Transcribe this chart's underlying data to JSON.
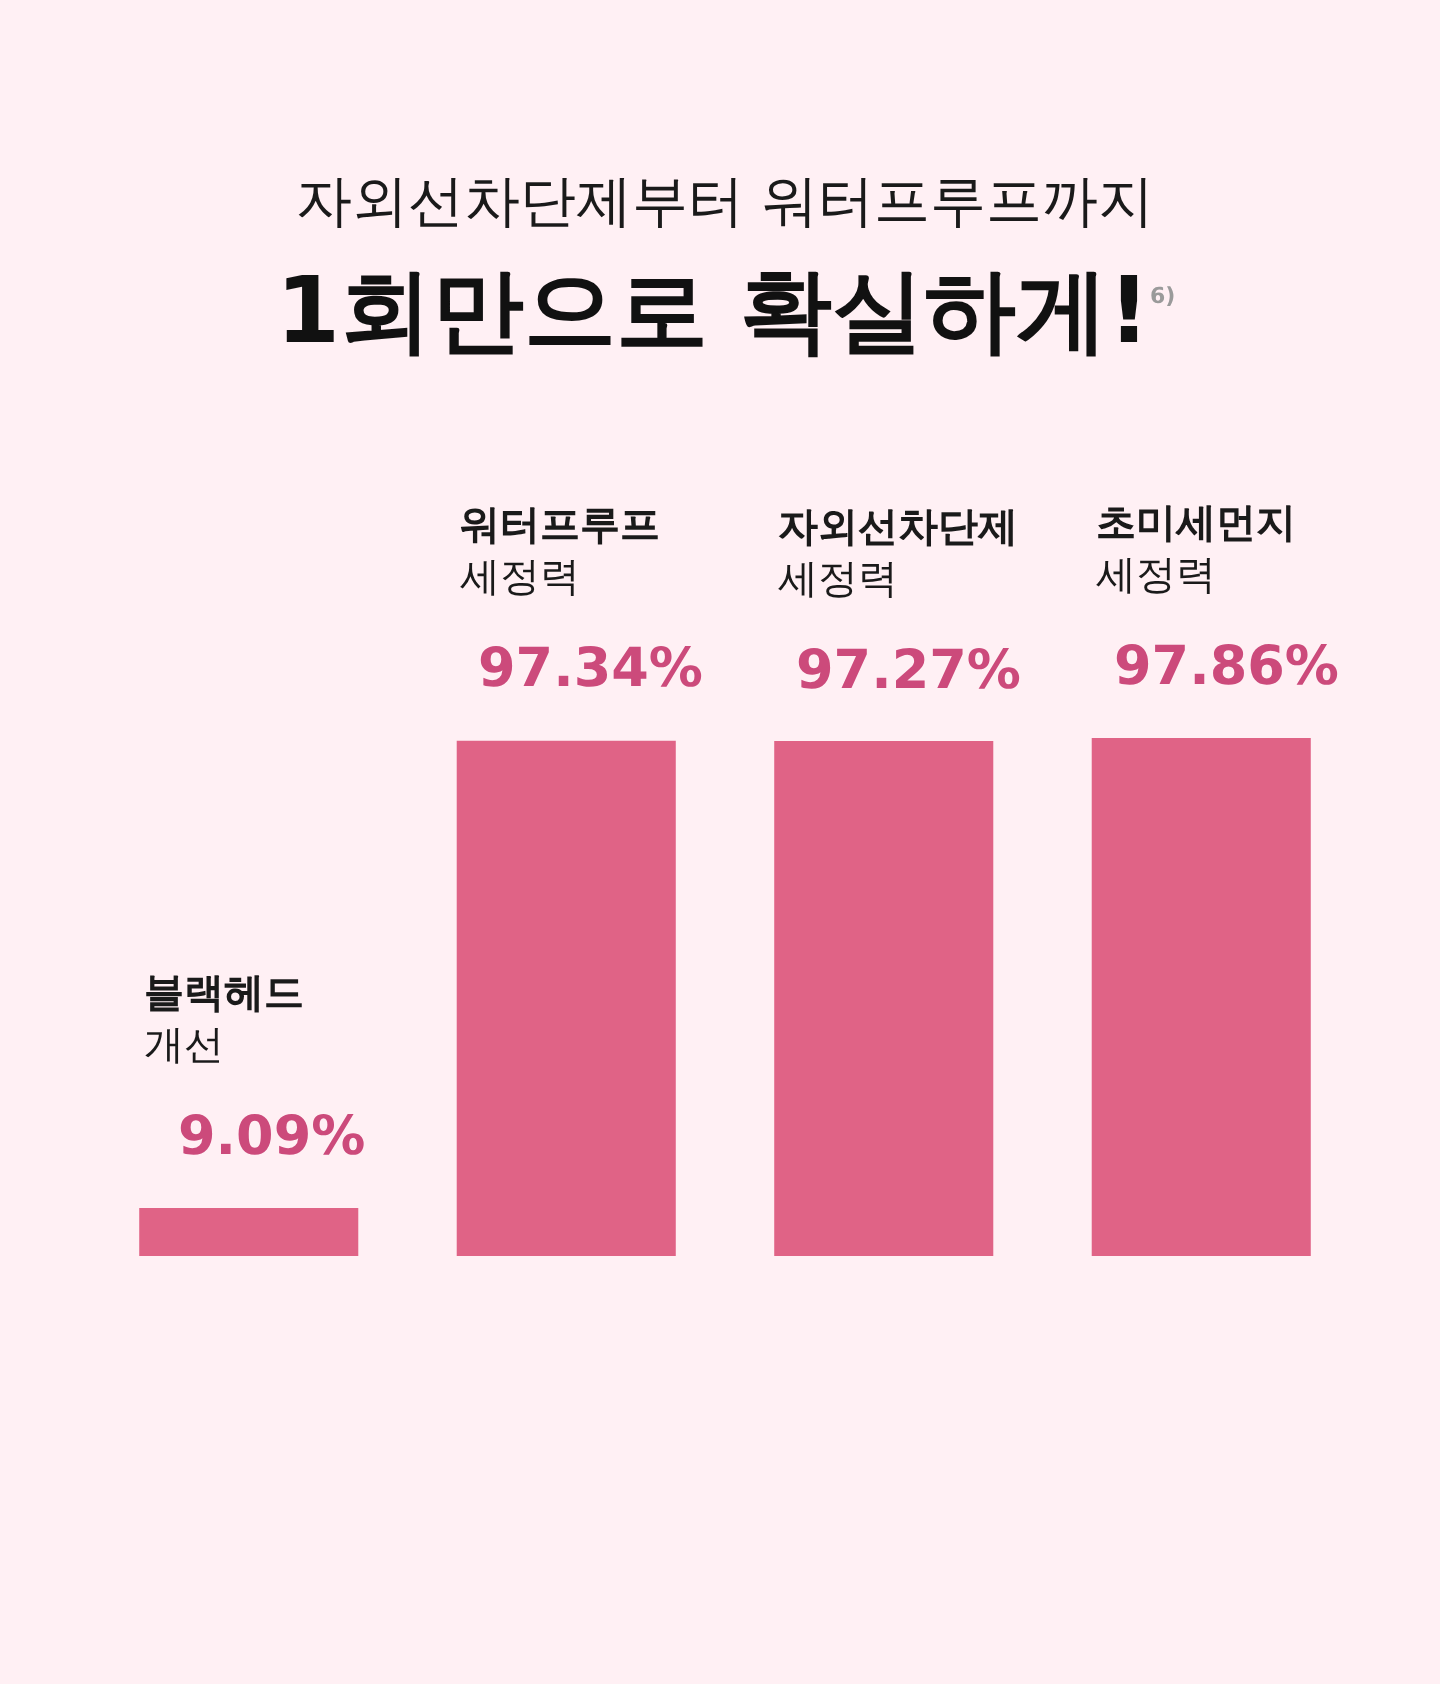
{
  "chart_data": {
    "type": "bar",
    "subtitle": "자외선차단제부터 워터프루프까지",
    "title": "1회만으로 확실하게!$^{6)}$",
    "categories": [
      "블랙헤드\n개선",
      "워터프루프\n세정력",
      "자외선차단제\n세정력",
      "초미세먼지\n세정력"
    ],
    "values": [
      9.09,
      97.34,
      97.27,
      97.86
    ],
    "value_labels": [
      "9.09%",
      "97.34%",
      "97.27%",
      "97.86%"
    ],
    "color": "#e06386"
  }
}
